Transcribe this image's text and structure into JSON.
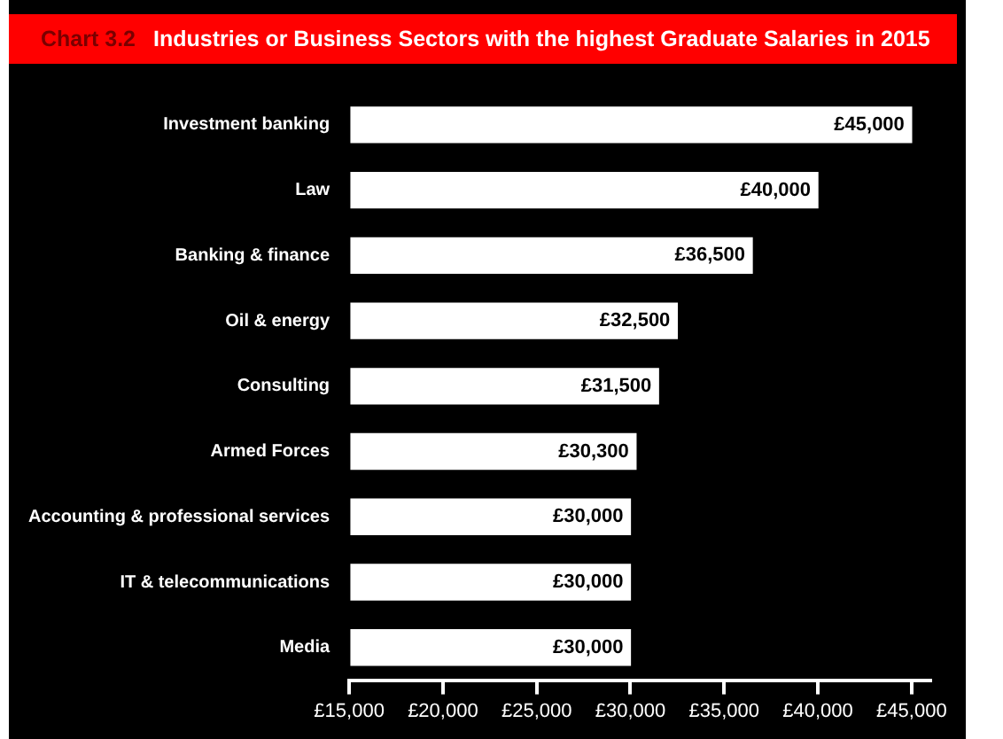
{
  "chart_data": {
    "type": "bar",
    "orientation": "horizontal",
    "title": "Industries or Business Sectors with the highest Graduate Salaries in 2015",
    "annotations": [
      "Chart 3.2"
    ],
    "categories": [
      "Investment banking",
      "Law",
      "Banking & finance",
      "Oil & energy",
      "Consulting",
      "Armed Forces",
      "Accounting & professional services",
      "IT & telecommunications",
      "Media"
    ],
    "values": [
      45000,
      40000,
      36500,
      32500,
      31500,
      30300,
      30000,
      30000,
      30000
    ],
    "value_labels": [
      "£45,000",
      "£40,000",
      "£36,500",
      "£32,500",
      "£31,500",
      "£30,300",
      "£30,000",
      "£30,000",
      "£30,000"
    ],
    "color": "#ffffff",
    "xlim": [
      15000,
      46000
    ],
    "xticks": [
      {
        "value": 15000,
        "label": "£15,000"
      },
      {
        "value": 20000,
        "label": "£20,000"
      },
      {
        "value": 25000,
        "label": "£25,000"
      },
      {
        "value": 30000,
        "label": "£30,000"
      },
      {
        "value": 35000,
        "label": "£35,000"
      },
      {
        "value": 40000,
        "label": "£40,000"
      },
      {
        "value": 45000,
        "label": "£45,000"
      }
    ],
    "grid": false,
    "legend": false
  }
}
